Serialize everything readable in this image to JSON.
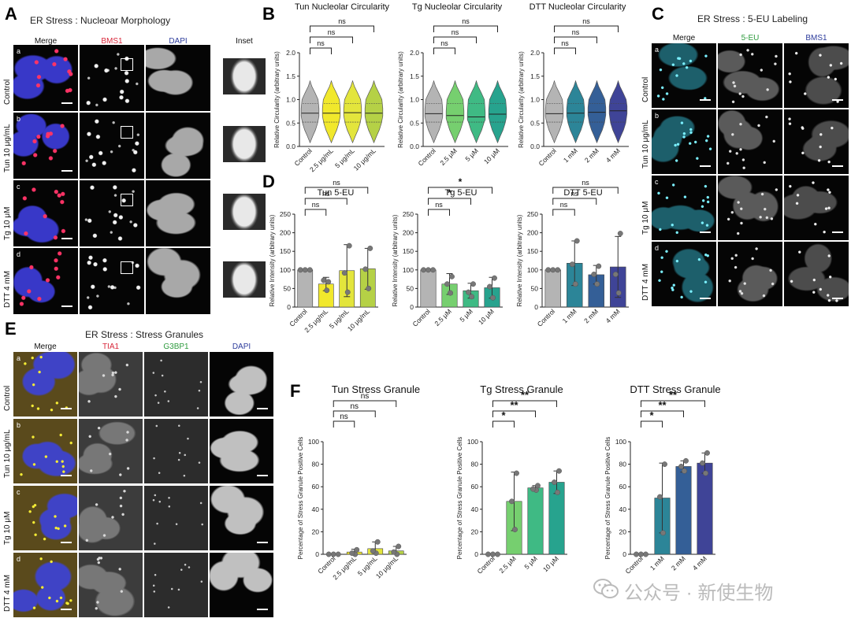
{
  "panels": {
    "A": {
      "letter": "A",
      "title": "ER Stress : Nucleoar Morphology",
      "columns": [
        {
          "label": "Merge",
          "color": "#111111"
        },
        {
          "label": "BMS1",
          "color": "#d8283b"
        },
        {
          "label": "DAPI",
          "color": "#2d3c9c"
        },
        {
          "label": "Inset",
          "color": "#111111"
        }
      ],
      "rows": [
        {
          "label": "Control",
          "tag": "a"
        },
        {
          "label": "Tun 10 μg/mL",
          "tag": "b"
        },
        {
          "label": "Tg 10 μM",
          "tag": "c"
        },
        {
          "label": "DTT 4 mM",
          "tag": "d"
        }
      ]
    },
    "C": {
      "letter": "C",
      "title": "ER Stress : 5-EU Labeling",
      "columns": [
        {
          "label": "Merge",
          "color": "#111111"
        },
        {
          "label": "5-EU",
          "color": "#2e9b3e"
        },
        {
          "label": "BMS1",
          "color": "#2d3c9c"
        }
      ],
      "rows": [
        {
          "label": "Control",
          "tag": "a"
        },
        {
          "label": "Tun 10 μg/mL",
          "tag": "b"
        },
        {
          "label": "Tg 10 μM",
          "tag": "c"
        },
        {
          "label": "DTT 4 mM",
          "tag": "d"
        }
      ]
    },
    "E": {
      "letter": "E",
      "title": "ER Stress : Stress Granules",
      "columns": [
        {
          "label": "Merge",
          "color": "#111111"
        },
        {
          "label": "TIA1",
          "color": "#d8283b"
        },
        {
          "label": "G3BP1",
          "color": "#2e9b3e"
        },
        {
          "label": "DAPI",
          "color": "#2d3c9c"
        }
      ],
      "rows": [
        {
          "label": "Control",
          "tag": "a"
        },
        {
          "label": "Tun 10 μg/mL",
          "tag": "b"
        },
        {
          "label": "Tg 10 μM",
          "tag": "c"
        },
        {
          "label": "DTT 4 mM",
          "tag": "d"
        }
      ]
    },
    "B": {
      "letter": "B"
    },
    "D": {
      "letter": "D"
    },
    "F": {
      "letter": "F"
    }
  },
  "chart_data": [
    {
      "id": "B-tun",
      "type": "violin",
      "title": "Tun Nucleolar Circularity",
      "ylabel": "Relative Circularity (arbitrary units)",
      "ylim": [
        0,
        2.0
      ],
      "yticks": [
        "0.0",
        "0.5",
        "1.0",
        "1.5",
        "2.0"
      ],
      "categories": [
        "Control",
        "2.5 μg/mL",
        "5 μg/mL",
        "10 μg/mL"
      ],
      "colors": [
        "#b4b4b4",
        "#f1e82c",
        "#e3e53c",
        "#b5d146"
      ],
      "medians": [
        0.71,
        0.71,
        0.72,
        0.71
      ],
      "significance": [
        "ns",
        "ns",
        "ns"
      ]
    },
    {
      "id": "B-tg",
      "type": "violin",
      "title": "Tg Nucleolar Circularity",
      "ylabel": "Relative Circularity (arbitrary units)",
      "ylim": [
        0,
        2.0
      ],
      "yticks": [
        "0.0",
        "0.5",
        "1.0",
        "1.5",
        "2.0"
      ],
      "categories": [
        "Control",
        "2.5 μM",
        "5 μM",
        "10 μM"
      ],
      "colors": [
        "#b4b4b4",
        "#76cf6f",
        "#3fba84",
        "#27a38e"
      ],
      "medians": [
        0.7,
        0.66,
        0.63,
        0.69
      ],
      "significance": [
        "ns",
        "ns",
        "ns"
      ]
    },
    {
      "id": "B-dtt",
      "type": "violin",
      "title": "DTT Nucleolar Circularity",
      "ylabel": "Relative Circularity (arbitrary units)",
      "ylim": [
        0,
        2.0
      ],
      "yticks": [
        "0.0",
        "0.5",
        "1.0",
        "1.5",
        "2.0"
      ],
      "categories": [
        "Control",
        "1 mM",
        "2 mM",
        "4 mM"
      ],
      "colors": [
        "#b4b4b4",
        "#2c8598",
        "#345f97",
        "#3f4497"
      ],
      "medians": [
        0.7,
        0.71,
        0.73,
        0.76
      ],
      "significance": [
        "ns",
        "ns",
        "ns"
      ]
    },
    {
      "id": "D-tun",
      "type": "bar",
      "title": "Tun 5-EU",
      "ylabel": "Relative Intensity (arbitrary units)",
      "ylim": [
        0,
        250
      ],
      "yticks": [
        "0",
        "50",
        "100",
        "150",
        "200",
        "250"
      ],
      "categories": [
        "Control",
        "2.5 μg/mL",
        "5 μg/mL",
        "10 μg/mL"
      ],
      "colors": [
        "#b4b4b4",
        "#f1e82c",
        "#e3e53c",
        "#b5d146"
      ],
      "values": [
        100,
        62,
        98,
        103
      ],
      "errors": [
        0,
        18,
        70,
        55
      ],
      "points": [
        [
          100,
          100,
          100
        ],
        [
          45,
          72,
          68
        ],
        [
          40,
          92,
          165
        ],
        [
          50,
          102,
          158
        ]
      ],
      "significance": [
        "ns",
        "ns",
        "ns"
      ]
    },
    {
      "id": "D-tg",
      "type": "bar",
      "title": "Tg 5-EU",
      "ylabel": "Relative Intensity (arbitrary units)",
      "ylim": [
        0,
        250
      ],
      "yticks": [
        "0",
        "50",
        "100",
        "150",
        "200",
        "250"
      ],
      "categories": [
        "Control",
        "2.5 μM",
        "5 μM",
        "10 μM"
      ],
      "colors": [
        "#b4b4b4",
        "#76cf6f",
        "#3fba84",
        "#27a38e"
      ],
      "values": [
        100,
        62,
        44,
        52
      ],
      "errors": [
        0,
        28,
        20,
        28
      ],
      "points": [
        [
          100,
          100,
          100
        ],
        [
          38,
          62,
          82
        ],
        [
          28,
          40,
          62
        ],
        [
          25,
          55,
          78
        ]
      ],
      "significance": [
        "ns",
        "*",
        "*"
      ]
    },
    {
      "id": "D-dtt",
      "type": "bar",
      "title": "DTT 5-EU",
      "ylabel": "Relative Intensity (arbitrary units)",
      "ylim": [
        0,
        250
      ],
      "yticks": [
        "0",
        "50",
        "100",
        "150",
        "200",
        "250"
      ],
      "categories": [
        "Control",
        "1 mM",
        "2 mM",
        "4 mM"
      ],
      "colors": [
        "#b4b4b4",
        "#2c8598",
        "#345f97",
        "#3f4497"
      ],
      "values": [
        100,
        118,
        87,
        108
      ],
      "errors": [
        0,
        60,
        25,
        82
      ],
      "points": [
        [
          100,
          100,
          100
        ],
        [
          62,
          115,
          178
        ],
        [
          62,
          88,
          110
        ],
        [
          38,
          88,
          198
        ]
      ],
      "significance": [
        "ns",
        "ns",
        "ns"
      ]
    },
    {
      "id": "F-tun",
      "type": "bar",
      "title": "Tun Stress Granule",
      "ylabel": "Percentage of Stress Granule Positive Cells",
      "ylim": [
        0,
        100
      ],
      "yticks": [
        "0",
        "20",
        "40",
        "60",
        "80",
        "100"
      ],
      "categories": [
        "Control",
        "2.5 μg/mL",
        "5 μg/mL",
        "10 μg/mL"
      ],
      "colors": [
        "#b4b4b4",
        "#f1e82c",
        "#e3e53c",
        "#b5d146"
      ],
      "values": [
        0,
        2,
        5,
        3
      ],
      "errors": [
        0,
        2.5,
        6,
        4
      ],
      "points": [
        [
          0,
          0,
          0
        ],
        [
          0,
          1,
          4
        ],
        [
          1,
          3,
          11
        ],
        [
          0,
          2,
          7
        ]
      ],
      "significance": [
        "ns",
        "ns",
        "ns"
      ]
    },
    {
      "id": "F-tg",
      "type": "bar",
      "title": "Tg Stress Granule",
      "ylabel": "Percentage of Stress Granule Positive Cells",
      "ylim": [
        0,
        100
      ],
      "yticks": [
        "0",
        "20",
        "40",
        "60",
        "80",
        "100"
      ],
      "categories": [
        "Control",
        "2.5 μM",
        "5 μM",
        "10 μM"
      ],
      "colors": [
        "#b4b4b4",
        "#76cf6f",
        "#3fba84",
        "#27a38e"
      ],
      "values": [
        0,
        47,
        59,
        64
      ],
      "errors": [
        0,
        26,
        2,
        10
      ],
      "points": [
        [
          0,
          0,
          0
        ],
        [
          22,
          47,
          72
        ],
        [
          57,
          58,
          61
        ],
        [
          55,
          64,
          74
        ]
      ],
      "significance": [
        "*",
        "**",
        "**"
      ]
    },
    {
      "id": "F-dtt",
      "type": "bar",
      "title": "DTT Stress Granule",
      "ylabel": "Percentage of Stress Granule Positive Cells",
      "ylim": [
        0,
        100
      ],
      "yticks": [
        "0",
        "20",
        "40",
        "60",
        "80",
        "100"
      ],
      "categories": [
        "Control",
        "1 mM",
        "2 mM",
        "4 mM"
      ],
      "colors": [
        "#b4b4b4",
        "#2c8598",
        "#345f97",
        "#3f4497"
      ],
      "values": [
        0,
        50,
        78,
        81
      ],
      "errors": [
        0,
        31,
        5,
        9
      ],
      "points": [
        [
          0,
          0,
          0
        ],
        [
          19,
          51,
          80
        ],
        [
          74,
          78,
          83
        ],
        [
          72,
          81,
          90
        ]
      ],
      "significance": [
        "*",
        "**",
        "**"
      ]
    }
  ],
  "watermark": {
    "text": "公众号 · 新使生物",
    "icon": "wechat-icon"
  }
}
